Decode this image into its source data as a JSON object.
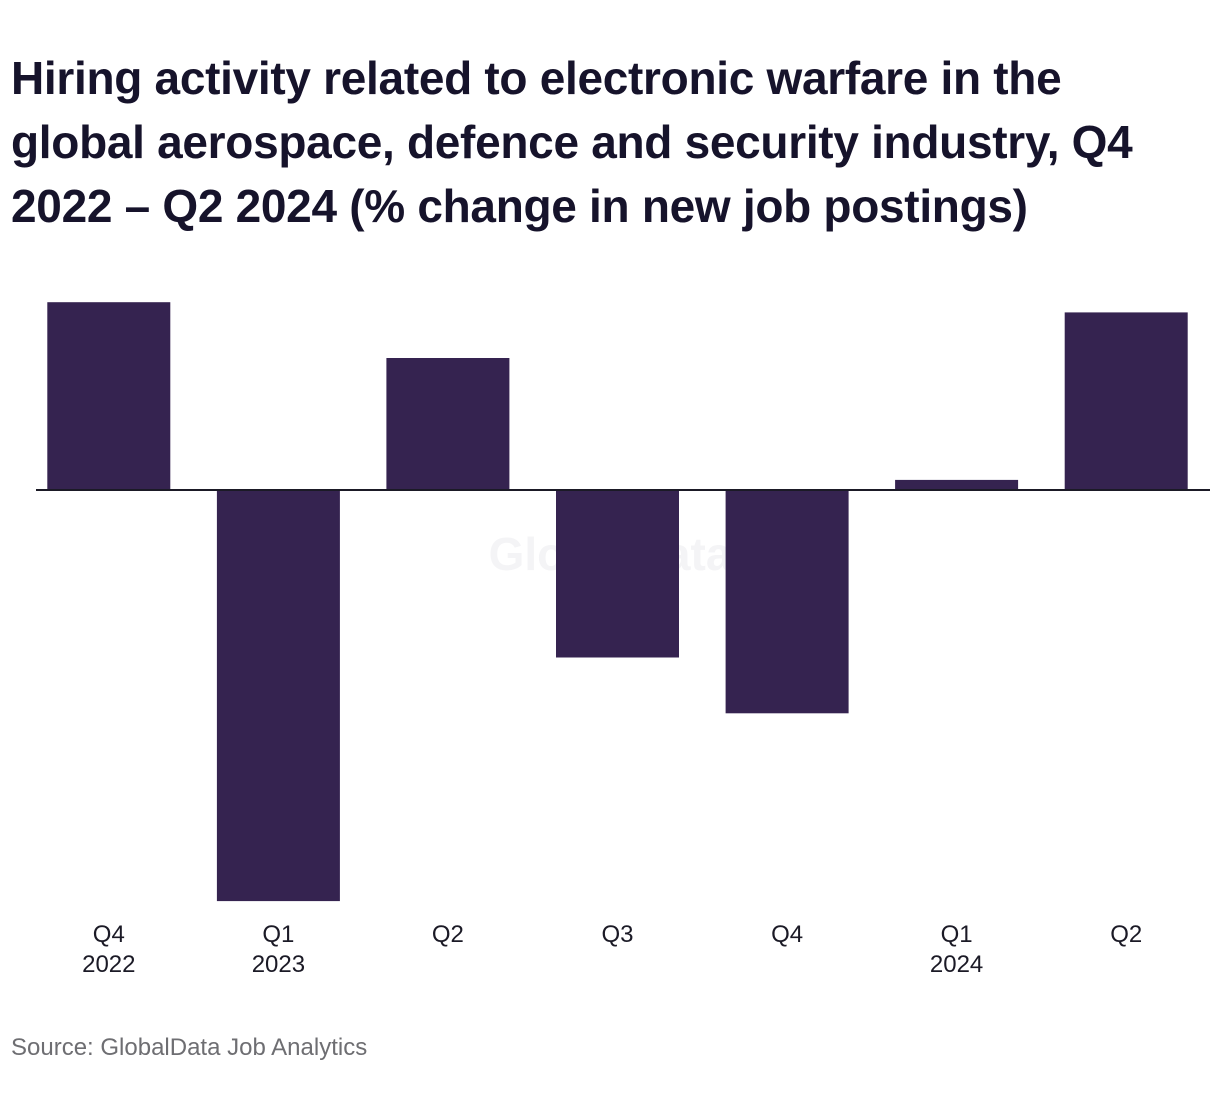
{
  "title": "Hiring activity related to electronic warfare in the global aerospace, defence and security industry, Q4 2022 – Q2 2024 (% change in new job postings)",
  "source": "Source: GlobalData Job Analytics",
  "watermark": "GlobalData",
  "colors": {
    "bar": "#352350",
    "axis": "#1b1a26"
  },
  "chart_data": {
    "type": "bar",
    "title": "Hiring activity related to electronic warfare in the global aerospace, defence and security industry, Q4 2022 – Q2 2024 (% change in new job postings)",
    "xlabel": "",
    "ylabel": "",
    "grid": false,
    "legend": "none",
    "categories": [
      [
        "Q4",
        "2022"
      ],
      [
        "Q1",
        "2023"
      ],
      [
        "Q2",
        ""
      ],
      [
        "Q3",
        ""
      ],
      [
        "Q4",
        ""
      ],
      [
        "Q1",
        "2024"
      ],
      [
        "Q2",
        ""
      ]
    ],
    "values": [
      18.5,
      -40.5,
      13,
      -16.5,
      -22,
      1,
      17.5
    ],
    "ylim": [
      -41,
      19
    ]
  }
}
